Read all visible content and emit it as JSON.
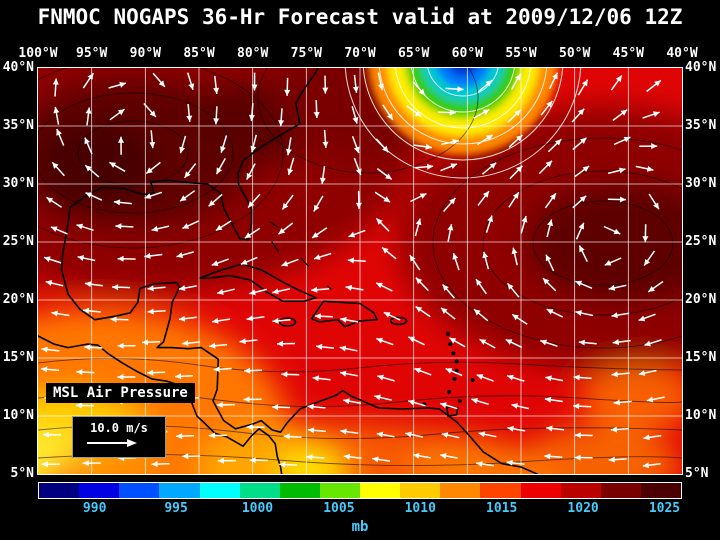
{
  "title": "FNMOC NOGAPS 36-Hr Forecast valid at 2009/12/06 12Z",
  "map": {
    "lon_labels": [
      "100°W",
      "95°W",
      "90°W",
      "85°W",
      "80°W",
      "75°W",
      "70°W",
      "65°W",
      "60°W",
      "55°W",
      "50°W",
      "45°W",
      "40°W"
    ],
    "lat_labels": [
      "40°N",
      "35°N",
      "30°N",
      "25°N",
      "20°N",
      "15°N",
      "10°N",
      "5°N"
    ],
    "overlay_label": "MSL Air Pressure",
    "wind_scale_label": "10.0 m/s"
  },
  "colorbar": {
    "unit": "mb",
    "tick_labels": [
      "990",
      "995",
      "1000",
      "1005",
      "1010",
      "1015",
      "1020",
      "1025"
    ],
    "colors": [
      "#000080",
      "#0000E0",
      "#0050FF",
      "#00A8FF",
      "#00FFFF",
      "#00DD88",
      "#00BB00",
      "#66E600",
      "#FFFF00",
      "#FFCC00",
      "#FF8800",
      "#FF4400",
      "#EE0000",
      "#BB0000",
      "#7A0000",
      "#4A0000"
    ],
    "label_color": "#44CCFF",
    "value_min_mb": 987.5,
    "value_max_mb": 1027.5,
    "value_step_mb": 2.5
  },
  "chart_data": {
    "type": "heatmap",
    "title": "FNMOC NOGAPS 36-Hr Forecast valid at 2009/12/06 12Z",
    "field": "MSL Air Pressure",
    "unit": "mb",
    "x_axis": {
      "label": "longitude",
      "range": [
        "100°W",
        "40°W"
      ],
      "tick_step_deg": 5
    },
    "y_axis": {
      "label": "latitude",
      "range": [
        "5°N",
        "40°N"
      ],
      "tick_step_deg": 5
    },
    "color_scale_ticks_mb": [
      990,
      995,
      1000,
      1005,
      1010,
      1015,
      1020,
      1025
    ],
    "overlay": {
      "type": "wind vectors",
      "reference_speed": "10.0 m/s"
    },
    "features": [
      {
        "feature": "low pressure center (cyclone)",
        "location": "≈40°N 64°W",
        "center_pressure_mb": "≈990 (blue core)"
      },
      {
        "feature": "high pressure area",
        "location": "≈34°N 92°W over US Gulf region",
        "pressure_mb": "≈1025"
      },
      {
        "feature": "high pressure area",
        "location": "≈30°N 46°W central Atlantic",
        "pressure_mb": "≈1026"
      },
      {
        "feature": "lower tropical pressures",
        "location": "south of 15°N, SW corner near Pacific coast",
        "pressure_mb": "≈1008–1013"
      },
      {
        "feature": "trade wind easterlies",
        "location": "tropics; arrows point westward, anticyclonic gyres around both highs, cyclonic flow around the low"
      }
    ]
  }
}
